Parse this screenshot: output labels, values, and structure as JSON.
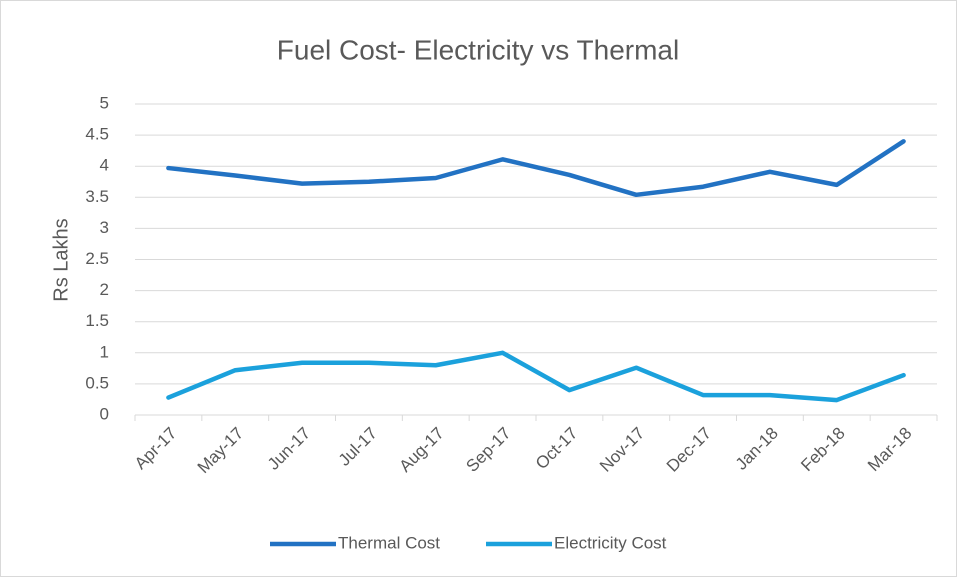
{
  "chart_data": {
    "type": "line",
    "title": "Fuel Cost- Electricity  vs Thermal",
    "y_label": "Rs Lakhs",
    "categories": [
      "Apr-17",
      "May-17",
      "Jun-17",
      "Jul-17",
      "Aug-17",
      "Sep-17",
      "Oct-17",
      "Nov-17",
      "Dec-17",
      "Jan-18",
      "Feb-18",
      "Mar-18"
    ],
    "series": [
      {
        "name": "Thermal Cost",
        "color": "#2272c3",
        "values": [
          3.97,
          3.85,
          3.72,
          3.75,
          3.81,
          4.11,
          3.86,
          3.54,
          3.67,
          3.91,
          3.7,
          4.4
        ]
      },
      {
        "name": "Electricity Cost",
        "color": "#1ba1dc",
        "values": [
          0.28,
          0.72,
          0.84,
          0.84,
          0.8,
          1.0,
          0.4,
          0.76,
          0.32,
          0.32,
          0.24,
          0.64
        ]
      }
    ],
    "ylim": [
      0,
      5
    ],
    "yticks": [
      0,
      0.5,
      1,
      1.5,
      2,
      2.5,
      3,
      3.5,
      4,
      4.5,
      5
    ],
    "grid": true,
    "legend": "bottom"
  }
}
